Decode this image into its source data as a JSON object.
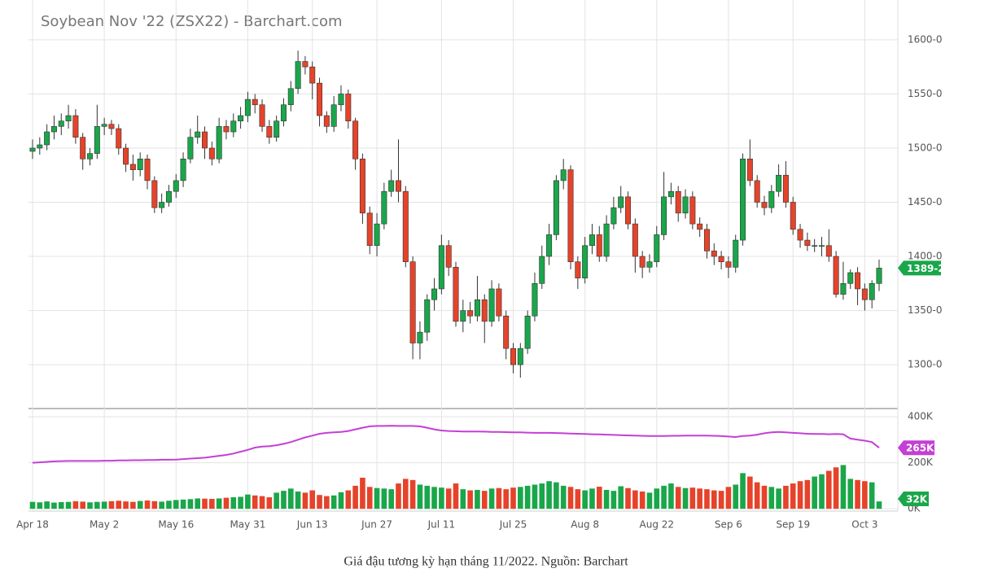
{
  "chart_data": [
    {
      "type": "candlestick",
      "title": "Soybean Nov '22 (ZSX22) - Barchart.com",
      "categories": [
        "Apr 18",
        null,
        null,
        null,
        null,
        null,
        null,
        null,
        null,
        null,
        "May 2",
        null,
        null,
        null,
        null,
        null,
        null,
        null,
        null,
        null,
        "May 16",
        null,
        null,
        null,
        null,
        null,
        null,
        null,
        null,
        null,
        "May 31",
        null,
        null,
        null,
        null,
        null,
        null,
        null,
        null,
        "Jun 13",
        null,
        null,
        null,
        null,
        null,
        null,
        null,
        null,
        "Jun 27",
        null,
        null,
        null,
        null,
        null,
        null,
        null,
        null,
        "Jul 11",
        null,
        null,
        null,
        null,
        null,
        null,
        null,
        null,
        null,
        "Jul 25",
        null,
        null,
        null,
        null,
        null,
        null,
        null,
        null,
        null,
        "Aug 8",
        null,
        null,
        null,
        null,
        null,
        null,
        null,
        null,
        null,
        "Aug 22",
        null,
        null,
        null,
        null,
        null,
        null,
        null,
        null,
        null,
        "Sep 6",
        null,
        null,
        null,
        null,
        null,
        null,
        null,
        null,
        "Sep 19",
        null,
        null,
        null,
        null,
        null,
        null,
        null,
        null,
        null,
        "Oct 3",
        null,
        null
      ],
      "open": [
        1497,
        1500,
        1503,
        1515,
        1520,
        1525,
        1530,
        1510,
        1490,
        1495,
        1520,
        1522,
        1518,
        1500,
        1485,
        1480,
        1490,
        1470,
        1445,
        1450,
        1460,
        1470,
        1490,
        1510,
        1515,
        1500,
        1490,
        1520,
        1515,
        1525,
        1530,
        1545,
        1540,
        1520,
        1510,
        1525,
        1540,
        1555,
        1580,
        1575,
        1560,
        1530,
        1520,
        1540,
        1550,
        1525,
        1490,
        1440,
        1410,
        1430,
        1460,
        1470,
        1460,
        1395,
        1320,
        1330,
        1360,
        1370,
        1410,
        1390,
        1340,
        1350,
        1345,
        1360,
        1340,
        1370,
        1345,
        1315,
        1300,
        1315,
        1345,
        1375,
        1400,
        1420,
        1470,
        1480,
        1395,
        1380,
        1410,
        1420,
        1400,
        1430,
        1445,
        1455,
        1430,
        1400,
        1390,
        1395,
        1420,
        1455,
        1460,
        1440,
        1455,
        1430,
        1425,
        1405,
        1400,
        1395,
        1390,
        1415,
        1490,
        1470,
        1450,
        1445,
        1460,
        1475,
        1450,
        1425,
        1415,
        1410,
        1410,
        1410,
        1400,
        1365,
        1375,
        1385,
        1370,
        1360,
        1375
      ],
      "high": [
        1508,
        1510,
        1522,
        1530,
        1532,
        1540,
        1536,
        1514,
        1500,
        1540,
        1528,
        1526,
        1522,
        1504,
        1494,
        1496,
        1494,
        1474,
        1458,
        1466,
        1476,
        1496,
        1518,
        1530,
        1520,
        1506,
        1528,
        1526,
        1532,
        1538,
        1552,
        1550,
        1545,
        1526,
        1530,
        1546,
        1562,
        1590,
        1585,
        1580,
        1565,
        1534,
        1548,
        1558,
        1554,
        1528,
        1495,
        1446,
        1440,
        1468,
        1480,
        1508,
        1465,
        1400,
        1340,
        1365,
        1380,
        1420,
        1415,
        1395,
        1360,
        1358,
        1382,
        1365,
        1378,
        1375,
        1350,
        1320,
        1320,
        1350,
        1385,
        1410,
        1430,
        1475,
        1490,
        1484,
        1400,
        1418,
        1430,
        1428,
        1438,
        1455,
        1465,
        1460,
        1435,
        1405,
        1402,
        1428,
        1478,
        1468,
        1465,
        1462,
        1460,
        1436,
        1430,
        1412,
        1405,
        1400,
        1420,
        1495,
        1508,
        1475,
        1456,
        1466,
        1485,
        1488,
        1455,
        1430,
        1422,
        1416,
        1418,
        1425,
        1405,
        1395,
        1388,
        1390,
        1375,
        1378,
        1397
      ],
      "low": [
        1490,
        1494,
        1498,
        1508,
        1512,
        1518,
        1504,
        1480,
        1484,
        1490,
        1512,
        1512,
        1494,
        1478,
        1470,
        1474,
        1462,
        1440,
        1440,
        1446,
        1454,
        1464,
        1486,
        1504,
        1490,
        1484,
        1486,
        1508,
        1510,
        1518,
        1524,
        1532,
        1515,
        1504,
        1506,
        1520,
        1534,
        1550,
        1568,
        1545,
        1520,
        1514,
        1515,
        1534,
        1518,
        1480,
        1430,
        1402,
        1400,
        1425,
        1455,
        1450,
        1390,
        1305,
        1305,
        1322,
        1350,
        1365,
        1382,
        1335,
        1330,
        1338,
        1340,
        1320,
        1335,
        1340,
        1305,
        1292,
        1288,
        1310,
        1340,
        1370,
        1392,
        1415,
        1462,
        1388,
        1370,
        1375,
        1402,
        1395,
        1395,
        1425,
        1440,
        1425,
        1385,
        1380,
        1385,
        1390,
        1415,
        1448,
        1432,
        1435,
        1425,
        1418,
        1398,
        1392,
        1388,
        1380,
        1385,
        1410,
        1465,
        1445,
        1438,
        1440,
        1455,
        1445,
        1420,
        1408,
        1405,
        1404,
        1400,
        1395,
        1362,
        1360,
        1370,
        1355,
        1350,
        1352,
        1368
      ],
      "close": [
        1500,
        1503,
        1515,
        1520,
        1525,
        1530,
        1510,
        1490,
        1495,
        1520,
        1522,
        1518,
        1500,
        1485,
        1480,
        1490,
        1470,
        1445,
        1450,
        1460,
        1470,
        1490,
        1510,
        1515,
        1500,
        1490,
        1520,
        1515,
        1525,
        1530,
        1545,
        1540,
        1520,
        1510,
        1525,
        1540,
        1555,
        1580,
        1575,
        1560,
        1530,
        1520,
        1540,
        1550,
        1525,
        1490,
        1440,
        1410,
        1430,
        1460,
        1470,
        1460,
        1395,
        1320,
        1330,
        1360,
        1370,
        1410,
        1390,
        1340,
        1350,
        1345,
        1360,
        1340,
        1370,
        1345,
        1315,
        1300,
        1315,
        1345,
        1375,
        1400,
        1420,
        1470,
        1480,
        1395,
        1380,
        1410,
        1420,
        1400,
        1430,
        1445,
        1455,
        1430,
        1400,
        1390,
        1395,
        1420,
        1455,
        1460,
        1440,
        1455,
        1430,
        1425,
        1405,
        1400,
        1395,
        1390,
        1415,
        1490,
        1470,
        1450,
        1445,
        1460,
        1475,
        1450,
        1425,
        1415,
        1410,
        1410,
        1410,
        1400,
        1365,
        1375,
        1385,
        1370,
        1360,
        1375,
        1389.2
      ],
      "up_color": "#1aa64a",
      "down_color": "#e5432a",
      "ylim": [
        1261,
        1633
      ],
      "yticks": [
        {
          "value": 1300,
          "label": "1300-0"
        },
        {
          "value": 1350,
          "label": "1350-0"
        },
        {
          "value": 1400,
          "label": "1400-0"
        },
        {
          "value": 1450,
          "label": "1450-0"
        },
        {
          "value": 1500,
          "label": "1500-0"
        },
        {
          "value": 1550,
          "label": "1550-0"
        },
        {
          "value": 1600,
          "label": "1600-0"
        }
      ],
      "grid": true,
      "last_label": "1389-2"
    },
    {
      "type": "volume",
      "volume": [
        30,
        28,
        32,
        27,
        29,
        30,
        33,
        31,
        28,
        30,
        31,
        33,
        35,
        32,
        30,
        34,
        36,
        33,
        31,
        35,
        38,
        40,
        42,
        45,
        44,
        43,
        45,
        48,
        50,
        52,
        62,
        58,
        55,
        50,
        70,
        78,
        88,
        75,
        70,
        80,
        60,
        55,
        58,
        72,
        80,
        100,
        135,
        95,
        90,
        88,
        85,
        110,
        130,
        125,
        105,
        100,
        95,
        92,
        88,
        110,
        85,
        80,
        82,
        78,
        88,
        90,
        85,
        92,
        95,
        100,
        105,
        110,
        120,
        115,
        100,
        95,
        85,
        80,
        88,
        96,
        82,
        78,
        98,
        90,
        80,
        75,
        70,
        88,
        100,
        110,
        95,
        90,
        92,
        88,
        85,
        80,
        78,
        95,
        105,
        155,
        140,
        115,
        100,
        95,
        88,
        100,
        110,
        120,
        125,
        140,
        150,
        165,
        180,
        190,
        130,
        125,
        120,
        115,
        32
      ],
      "open_interest": [
        200,
        202,
        204,
        206,
        207,
        208,
        208,
        208,
        208,
        208,
        209,
        209,
        210,
        210,
        211,
        211,
        212,
        212,
        213,
        213,
        214,
        216,
        218,
        220,
        222,
        226,
        230,
        234,
        240,
        248,
        256,
        266,
        270,
        272,
        276,
        282,
        290,
        300,
        310,
        318,
        326,
        330,
        332,
        334,
        338,
        345,
        352,
        358,
        360,
        360,
        361,
        360,
        360,
        360,
        358,
        352,
        345,
        340,
        338,
        337,
        336,
        336,
        336,
        335,
        334,
        334,
        333,
        332,
        332,
        331,
        330,
        330,
        330,
        329,
        328,
        327,
        326,
        325,
        324,
        323,
        322,
        321,
        320,
        319,
        318,
        317,
        316,
        316,
        316,
        317,
        317,
        318,
        318,
        318,
        318,
        317,
        316,
        314,
        312,
        316,
        318,
        322,
        328,
        332,
        334,
        332,
        330,
        328,
        326,
        325,
        325,
        324,
        325,
        324,
        305,
        300,
        296,
        290,
        265
      ],
      "oi_color": "#c43fd6",
      "ylim": [
        -10,
        425
      ],
      "yticks": [
        {
          "value": 0,
          "label": "0K"
        },
        {
          "value": 200,
          "label": "200K"
        },
        {
          "value": 400,
          "label": "400K"
        }
      ],
      "volume_last_label": "32K",
      "oi_last_label": "265K"
    }
  ],
  "caption": "Giá đậu tương kỳ hạn tháng 11/2022. Nguồn: Barchart"
}
